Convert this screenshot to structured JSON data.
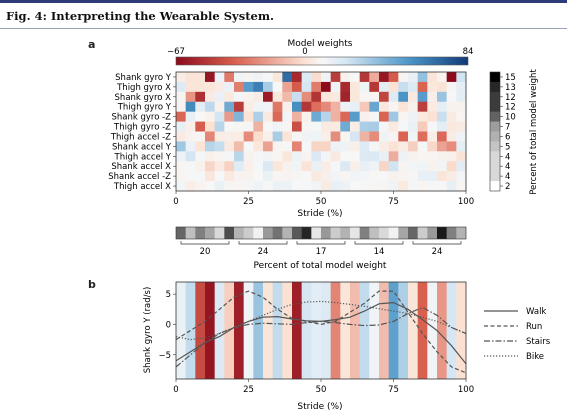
{
  "figure_title": "Fig. 4: Interpreting the Wearable System.",
  "panels": {
    "a": "a",
    "b": "b"
  },
  "colors": {
    "neg": "#8b0a1c",
    "zero": "#f7f7f7",
    "pos": "#123a78",
    "grey_lo": "#ffffff",
    "grey_hi": "#000000",
    "topbar": "#2e3b78"
  },
  "chart_data": [
    {
      "type": "heatmap",
      "title": "Model weights",
      "xlabel": "Stride (%)",
      "ylabel": "",
      "rows": [
        "Shank gyro Y",
        "Thigh gyro X",
        "Shank gyro X",
        "Thigh gyro Y",
        "Shank gyro -Z",
        "Thigh gyro -Z",
        "Thigh accel -Z",
        "Shank accel Y",
        "Thigh accel Y",
        "Shank accel X",
        "Shank accel -Z",
        "Thigh accel X"
      ],
      "colorbar": {
        "min": -67,
        "zero": 0,
        "max": 84,
        "tick_labels": [
          "−67",
          "0",
          "84"
        ]
      },
      "x_ticks": [
        "0",
        "25",
        "50",
        "75",
        "100"
      ],
      "xlim": [
        0,
        100
      ],
      "row_weight_label": "Percent of total model weight",
      "row_weights": [
        15,
        13,
        12,
        12,
        10,
        7,
        6,
        5,
        4,
        4,
        4,
        2
      ],
      "column_weight_label": "Percent of total model weight",
      "column_group_weights": [
        20,
        24,
        17,
        14,
        24
      ],
      "grid_columns": 30
    },
    {
      "type": "line",
      "ylabel": "Shank gyro Y (rad/s)",
      "xlabel": "Stride (%)",
      "xlim": [
        0,
        100
      ],
      "ylim": [
        -9,
        7
      ],
      "x_ticks": [
        "0",
        "25",
        "50",
        "75",
        "100"
      ],
      "y_ticks": [
        "5",
        "0",
        "−5"
      ],
      "background_stripes": [
        0.1,
        0.3,
        -0.7,
        -0.95,
        0.2,
        -0.3,
        -0.9,
        0.05,
        0.4,
        -0.2,
        0.3,
        -0.25,
        -0.9,
        0.25,
        0.15,
        0.2,
        -0.5,
        -0.2,
        -0.35,
        0.3,
        0.05,
        -0.35,
        0.55,
        0.35,
        -0.2,
        -0.6,
        0.05,
        -0.45,
        0.25,
        -0.25
      ],
      "series": [
        {
          "name": "Walk",
          "dash": "solid",
          "x": [
            0,
            5,
            10,
            15,
            20,
            25,
            30,
            35,
            40,
            45,
            50,
            55,
            60,
            65,
            70,
            75,
            80,
            85,
            90,
            95,
            100
          ],
          "y": [
            -6,
            -4.5,
            -3,
            -2,
            -0.5,
            0.5,
            1.2,
            1.3,
            0.9,
            0.6,
            0.5,
            0.8,
            1.2,
            2.2,
            3.4,
            3.6,
            2.5,
            0.8,
            -1,
            -3.5,
            -6.5
          ]
        },
        {
          "name": "Run",
          "dash": "dashed",
          "x": [
            0,
            5,
            10,
            15,
            20,
            25,
            30,
            35,
            40,
            45,
            50,
            55,
            60,
            65,
            70,
            75,
            80,
            85,
            90,
            95,
            100
          ],
          "y": [
            -2.5,
            -1,
            0.5,
            2.5,
            4.5,
            5.5,
            4.5,
            2.5,
            1,
            0.5,
            0,
            0.5,
            2,
            3.5,
            5.5,
            5.5,
            2,
            -1.5,
            -4.5,
            -7,
            -8
          ]
        },
        {
          "name": "Stairs",
          "dash": "dashdot",
          "x": [
            0,
            5,
            10,
            15,
            20,
            25,
            30,
            35,
            40,
            45,
            50,
            55,
            60,
            65,
            70,
            75,
            80,
            85,
            90,
            95,
            100
          ],
          "y": [
            -7,
            -5,
            -3,
            -1.5,
            -0.5,
            0,
            0.2,
            0.1,
            0,
            0.3,
            0.5,
            0.3,
            0,
            -0.2,
            -0.1,
            0.5,
            1.8,
            2.8,
            1.5,
            -0.5,
            -1.5
          ]
        },
        {
          "name": "Bike",
          "dash": "dotted",
          "x": [
            0,
            5,
            10,
            15,
            20,
            25,
            30,
            35,
            40,
            45,
            50,
            55,
            60,
            65,
            70,
            75,
            80,
            85,
            90,
            95,
            100
          ],
          "y": [
            -2,
            -2.5,
            -2.2,
            -1.5,
            -0.5,
            0.5,
            1.5,
            2.5,
            3.3,
            3.7,
            3.8,
            3.6,
            3.3,
            3,
            2.6,
            2.2,
            1.8,
            1.2,
            0.5,
            -0.5,
            -1.5
          ]
        }
      ],
      "legend_position": "right"
    }
  ]
}
